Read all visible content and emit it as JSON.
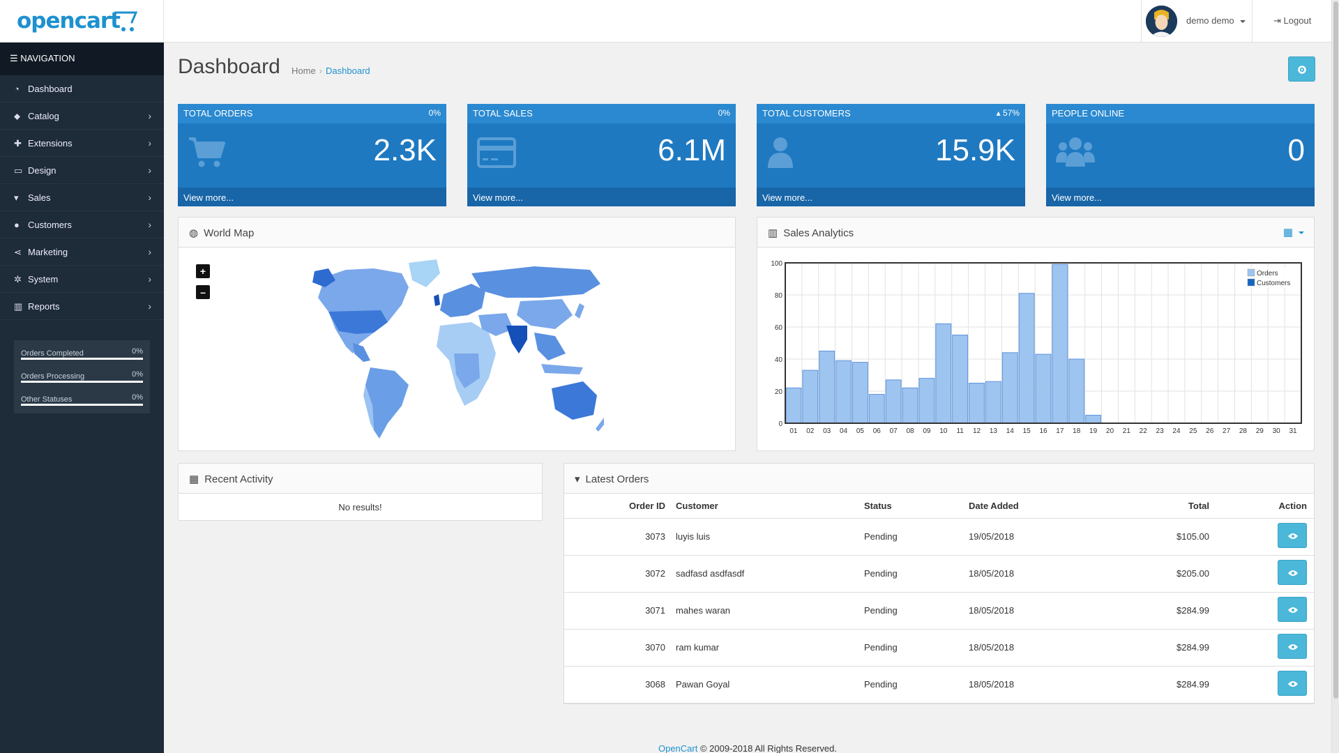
{
  "header": {
    "logo": "opencart",
    "user_name": "demo demo",
    "logout_label": "Logout"
  },
  "sidebar": {
    "heading": "NAVIGATION",
    "items": [
      {
        "label": "Dashboard",
        "icon": "dashboard-icon",
        "has_children": false
      },
      {
        "label": "Catalog",
        "icon": "tags-icon",
        "has_children": true
      },
      {
        "label": "Extensions",
        "icon": "puzzle-icon",
        "has_children": true
      },
      {
        "label": "Design",
        "icon": "monitor-icon",
        "has_children": true
      },
      {
        "label": "Sales",
        "icon": "cart-icon",
        "has_children": true
      },
      {
        "label": "Customers",
        "icon": "user-icon",
        "has_children": true
      },
      {
        "label": "Marketing",
        "icon": "share-icon",
        "has_children": true
      },
      {
        "label": "System",
        "icon": "cog-icon",
        "has_children": true
      },
      {
        "label": "Reports",
        "icon": "bar-chart-icon",
        "has_children": true
      }
    ],
    "stats": [
      {
        "label": "Orders Completed",
        "value": "0%"
      },
      {
        "label": "Orders Processing",
        "value": "0%"
      },
      {
        "label": "Other Statuses",
        "value": "0%"
      }
    ]
  },
  "page": {
    "title": "Dashboard",
    "breadcrumb": [
      "Home",
      "Dashboard"
    ]
  },
  "tiles": [
    {
      "title": "TOTAL ORDERS",
      "percent": "0%",
      "value": "2.3K",
      "link": "View more...",
      "icon": "cart-icon"
    },
    {
      "title": "TOTAL SALES",
      "percent": "0%",
      "value": "6.1M",
      "link": "View more...",
      "icon": "credit-card-icon"
    },
    {
      "title": "TOTAL CUSTOMERS",
      "percent": "57%",
      "value": "15.9K",
      "link": "View more...",
      "icon": "user-icon"
    },
    {
      "title": "PEOPLE ONLINE",
      "percent": "",
      "value": "0",
      "link": "View more...",
      "icon": "users-icon"
    }
  ],
  "world_map": {
    "title": "World Map",
    "zoom_in": "+",
    "zoom_out": "–"
  },
  "sales_analytics": {
    "title": "Sales Analytics",
    "chart_data": {
      "type": "bar",
      "categories": [
        "01",
        "02",
        "03",
        "04",
        "05",
        "06",
        "07",
        "08",
        "09",
        "10",
        "11",
        "12",
        "13",
        "14",
        "15",
        "16",
        "17",
        "18",
        "19",
        "20",
        "21",
        "22",
        "23",
        "24",
        "25",
        "26",
        "27",
        "28",
        "29",
        "30",
        "31"
      ],
      "series": [
        {
          "name": "Orders",
          "color": "#9ec4f0",
          "values": [
            22,
            33,
            45,
            39,
            38,
            18,
            27,
            22,
            28,
            62,
            55,
            25,
            26,
            44,
            81,
            43,
            99,
            40,
            5,
            0,
            0,
            0,
            0,
            0,
            0,
            0,
            0,
            0,
            0,
            0,
            0
          ]
        },
        {
          "name": "Customers",
          "color": "#1565c0",
          "values": [
            0,
            0,
            0,
            0,
            0,
            0,
            0,
            0,
            0,
            0,
            0,
            0,
            0,
            0,
            0,
            0,
            0,
            0,
            0,
            0,
            0,
            0,
            0,
            0,
            0,
            0,
            0,
            0,
            0,
            0,
            0
          ]
        }
      ],
      "yticks": [
        "0",
        "20",
        "40",
        "60",
        "80",
        "100"
      ],
      "ylim": [
        0,
        100
      ],
      "grid": true,
      "legend": "top-right"
    }
  },
  "recent_activity": {
    "title": "Recent Activity",
    "empty": "No results!"
  },
  "latest_orders": {
    "title": "Latest Orders",
    "columns": [
      "Order ID",
      "Customer",
      "Status",
      "Date Added",
      "Total",
      "Action"
    ],
    "rows": [
      {
        "id": "3073",
        "customer": "luyis luis",
        "status": "Pending",
        "date": "19/05/2018",
        "total": "$105.00"
      },
      {
        "id": "3072",
        "customer": "sadfasd asdfasdf",
        "status": "Pending",
        "date": "18/05/2018",
        "total": "$205.00"
      },
      {
        "id": "3071",
        "customer": "mahes waran",
        "status": "Pending",
        "date": "18/05/2018",
        "total": "$284.99"
      },
      {
        "id": "3070",
        "customer": "ram kumar",
        "status": "Pending",
        "date": "18/05/2018",
        "total": "$284.99"
      },
      {
        "id": "3068",
        "customer": "Pawan Goyal",
        "status": "Pending",
        "date": "18/05/2018",
        "total": "$284.99"
      }
    ]
  },
  "footer": {
    "link": "OpenCart",
    "text": "© 2009-2018 All Rights Reserved."
  },
  "colors": {
    "accent": "#1e91cf",
    "tile": "#1e79c1",
    "sidebar": "#1e2b38",
    "button": "#4bb7d9"
  }
}
